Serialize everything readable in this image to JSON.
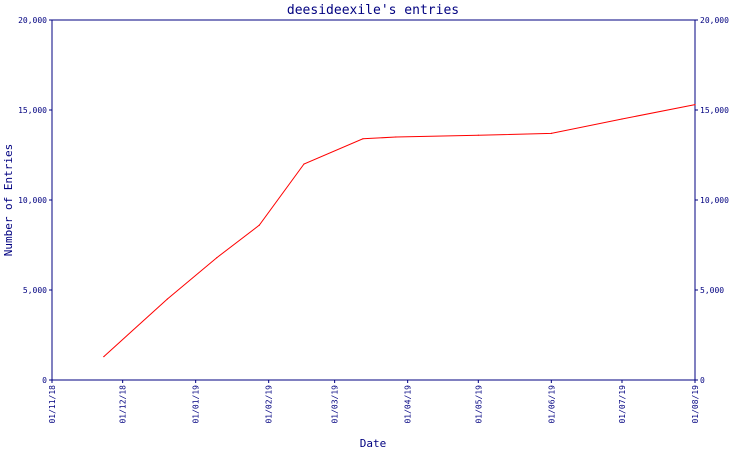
{
  "chart_data": {
    "type": "line",
    "title": "deesideexile's entries",
    "xlabel": "Date",
    "ylabel": "Number of Entries",
    "ylim": [
      0,
      20000
    ],
    "y_ticks": [
      0,
      5000,
      10000,
      15000,
      20000
    ],
    "y_tick_labels": [
      "0",
      "5,000",
      "10,000",
      "15,000",
      "20,000"
    ],
    "x_ticks": [
      "2018-11-01",
      "2018-12-01",
      "2019-01-01",
      "2019-02-01",
      "2019-03-01",
      "2019-04-01",
      "2019-05-01",
      "2019-06-01",
      "2019-07-01",
      "2019-08-01"
    ],
    "x_tick_labels": [
      "01/11/18",
      "01/12/18",
      "01/01/19",
      "01/02/19",
      "01/03/19",
      "01/04/19",
      "01/05/19",
      "01/06/19",
      "01/07/19",
      "01/08/19"
    ],
    "grid": false,
    "line_color": "#ff0000",
    "axis_color": "#000080",
    "series": [
      {
        "x": [
          "2018-11-23",
          "2018-12-20",
          "2019-01-10",
          "2019-01-28",
          "2019-02-16",
          "2019-03-13",
          "2019-03-27",
          "2019-05-01",
          "2019-06-01",
          "2019-07-01",
          "2019-08-01"
        ],
        "values": [
          1300,
          4500,
          6800,
          8600,
          12000,
          13400,
          13500,
          13600,
          13700,
          14500,
          15300
        ]
      }
    ]
  }
}
